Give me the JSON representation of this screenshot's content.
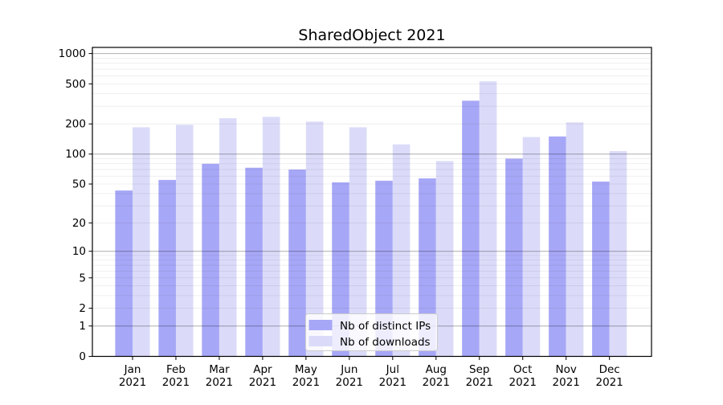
{
  "chart_data": {
    "type": "bar",
    "title": "SharedObject 2021",
    "categories": [
      "Jan",
      "Feb",
      "Mar",
      "Apr",
      "May",
      "Jun",
      "Jul",
      "Aug",
      "Sep",
      "Oct",
      "Nov",
      "Dec"
    ],
    "x_tick_line2": "2021",
    "series": [
      {
        "name": "Nb of distinct IPs",
        "color": "#a7a7f7",
        "values": [
          43,
          55,
          80,
          73,
          70,
          52,
          54,
          57,
          340,
          90,
          150,
          53
        ]
      },
      {
        "name": "Nb of downloads",
        "color": "#dbdbf9",
        "values": [
          185,
          196,
          228,
          235,
          211,
          185,
          125,
          85,
          530,
          148,
          207,
          107
        ]
      }
    ],
    "y_scale": "log1p",
    "y_ticks": [
      0,
      1,
      2,
      5,
      10,
      20,
      50,
      100,
      200,
      500,
      1000
    ],
    "ylim": [
      0,
      1150
    ],
    "grid": {
      "major_ticks": [
        1,
        10,
        100,
        1000
      ],
      "minor_bases": [
        1,
        10,
        100
      ],
      "major_color": "rgba(0,0,0,0.32)",
      "minor_color": "rgba(0,0,0,0.08)"
    },
    "legend_position": "lower center",
    "axis_color": "#000000",
    "background": "#ffffff"
  }
}
